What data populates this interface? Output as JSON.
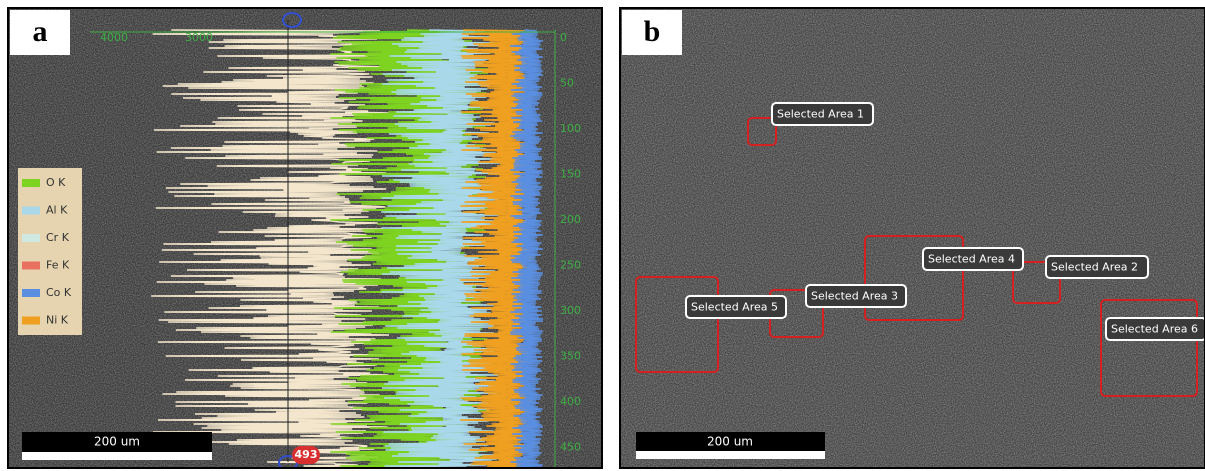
{
  "panel_a": {
    "label": "a",
    "top_axis_labels": [
      "4000",
      "3000"
    ],
    "right_axis_labels": [
      0,
      50,
      100,
      150,
      200,
      250,
      300,
      350,
      400,
      450
    ],
    "legend": [
      "O K",
      "Al K",
      "Cr K",
      "Fe K",
      "Co K",
      "Ni K"
    ],
    "scale_bar": "200 um",
    "marker": "493"
  },
  "panel_b": {
    "label": "b",
    "areas": [
      "Selected Area 1",
      "Selected Area 2",
      "Selected Area 3",
      "Selected Area 4",
      "Selected Area 5",
      "Selected Area 6"
    ],
    "scale_bar": "200 um"
  }
}
